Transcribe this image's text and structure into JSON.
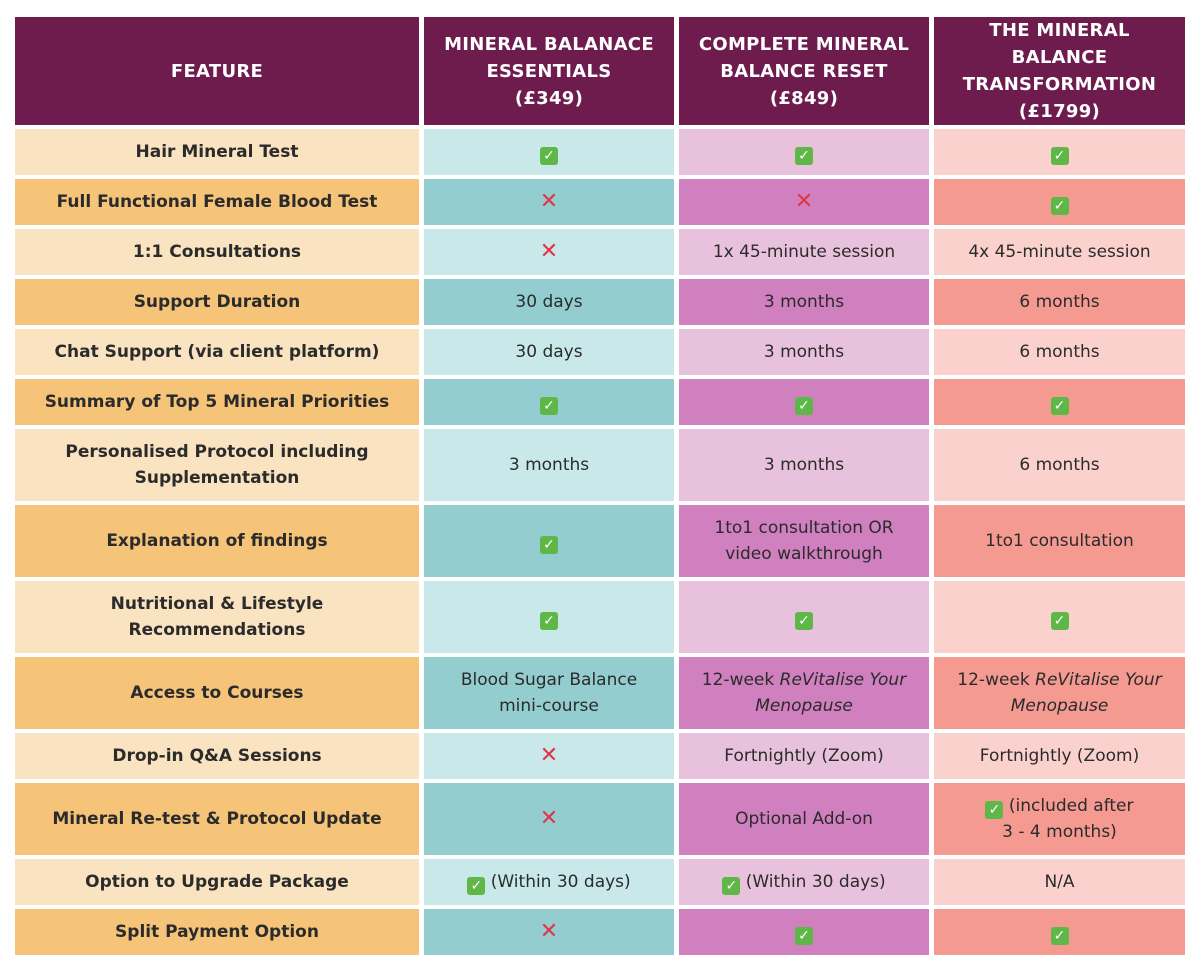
{
  "header": {
    "feature": "FEATURE",
    "packages": [
      {
        "line1": "MINERAL BALANACE",
        "line2": "ESSENTIALS",
        "price": "(£349)"
      },
      {
        "line1": "COMPLETE MINERAL",
        "line2": "BALANCE RESET",
        "price": "(£849)"
      },
      {
        "line1": "THE MINERAL BALANCE",
        "line2": "TRANSFORMATION",
        "price": "(£1799)"
      }
    ]
  },
  "symbols": {
    "check": "✓",
    "cross": "✕"
  },
  "rows": [
    {
      "feature": "Hair Mineral Test",
      "essentials": "",
      "reset": "",
      "transformation": ""
    },
    {
      "feature": "Full Functional Female Blood Test",
      "essentials": "",
      "reset": "",
      "transformation": ""
    },
    {
      "feature": "1:1 Consultations",
      "essentials": "",
      "reset": "1x 45-minute session",
      "transformation": "4x 45-minute session"
    },
    {
      "feature": "Support Duration",
      "essentials": "30 days",
      "reset": "3 months",
      "transformation": "6 months"
    },
    {
      "feature": "Chat Support (via client platform)",
      "essentials": "30 days",
      "reset": "3 months",
      "transformation": "6 months"
    },
    {
      "feature": "Summary of Top 5 Mineral Priorities",
      "essentials": "",
      "reset": "",
      "transformation": ""
    },
    {
      "feature_line1": "Personalised Protocol including",
      "feature_line2": "Supplementation",
      "essentials": "3 months",
      "reset": "3 months",
      "transformation": "6 months"
    },
    {
      "feature": "Explanation of findings",
      "essentials": "",
      "reset_line1": "1to1 consultation OR",
      "reset_line2": "video walkthrough",
      "transformation": "1to1 consultation"
    },
    {
      "feature": "Nutritional & Lifestyle Recommendations",
      "essentials": "",
      "reset": "",
      "transformation": ""
    },
    {
      "feature": "Access to Courses",
      "essentials_line1": "Blood Sugar Balance",
      "essentials_line2": "mini-course",
      "reset_prefix": "12-week ",
      "reset_italic1": "ReVitalise Your",
      "reset_italic2": "Menopause",
      "transformation_prefix": "12-week ",
      "transformation_italic1": "ReVitalise Your",
      "transformation_italic2": "Menopause"
    },
    {
      "feature": "Drop-in Q&A Sessions",
      "essentials": "",
      "reset": "Fortnightly (Zoom)",
      "transformation": "Fortnightly (Zoom)"
    },
    {
      "feature": "Mineral Re-test & Protocol Update",
      "essentials": "",
      "reset": "Optional Add-on",
      "transformation_line1": " (included after",
      "transformation_line2": "3 - 4 months)"
    },
    {
      "feature": "Option to Upgrade Package",
      "essentials": " (Within 30 days)",
      "reset": " (Within 30 days)",
      "transformation": "N/A"
    },
    {
      "feature": "Split Payment Option",
      "essentials": "",
      "reset": "",
      "transformation": ""
    }
  ]
}
